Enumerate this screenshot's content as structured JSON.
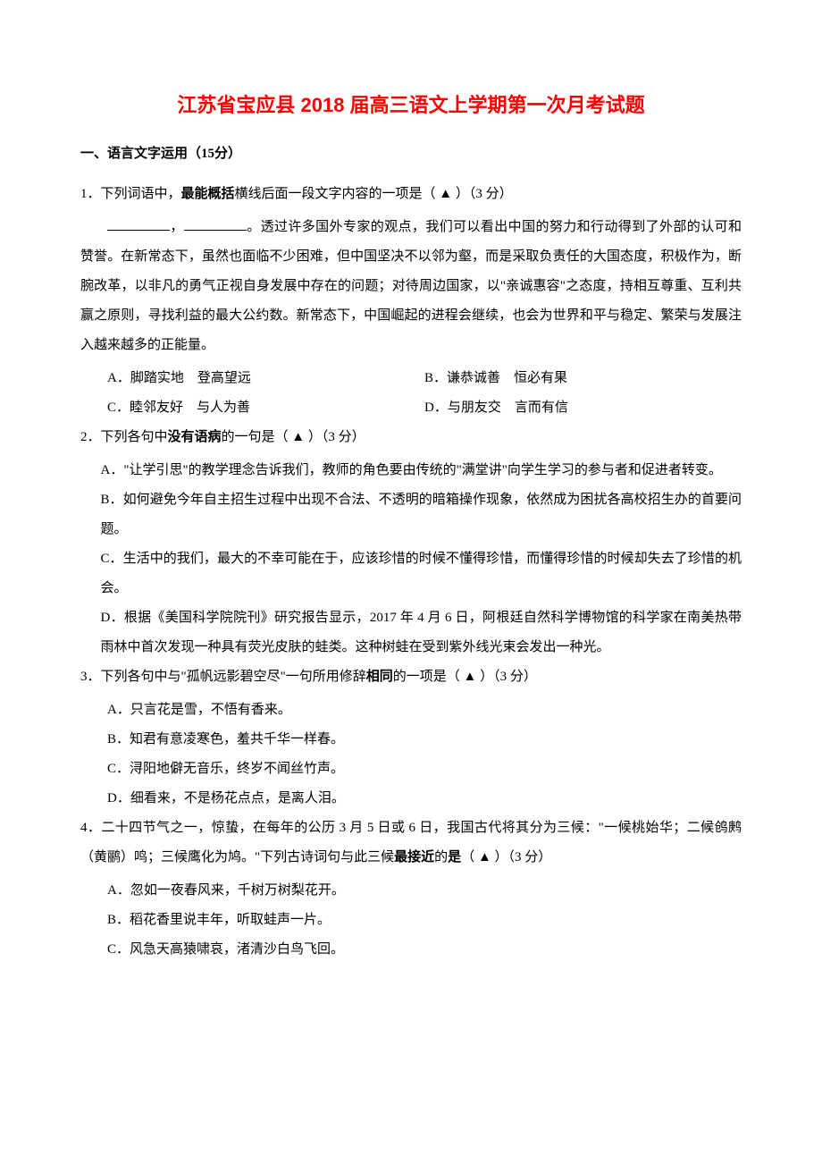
{
  "title": "江苏省宝应县 2018 届高三语文上学期第一次月考试题",
  "section1": {
    "header": "一、语言文字运用（15分）",
    "q1": {
      "label": "1．下列词语中，",
      "bold": "最能概括",
      "after": "横线后面一段文字内容的一项是（  ▲  ）（3 分）",
      "body": "。透过许多国外专家的观点，我们可以看出中国的努力和行动得到了外部的认可和赞誉。在新常态下，虽然也面临不少困难，但中国坚决不以邻为壑，而是采取负责任的大国态度，积极作为，断腕改革，以非凡的勇气正视自身发展中存在的问题；对待周边国家，以\"亲诚惠容\"之态度，持相互尊重、互利共赢之原则，寻找利益的最大公约数。新常态下，中国崛起的进程会继续，也会为世界和平与稳定、繁荣与发展注入越来越多的正能量。",
      "optA1": "A．脚踏实地",
      "optA2": "登高望远",
      "optB1": "B．谦恭诚善",
      "optB2": "恒必有果",
      "optC1": "C．睦邻友好",
      "optC2": "与人为善",
      "optD1": "D．与朋友交",
      "optD2": "言而有信"
    },
    "q2": {
      "label": "2．下列各句中",
      "bold": "没有语病",
      "after": "的一句是（  ▲  ）（3 分）",
      "optA": "A．\"让学引思\"的教学理念告诉我们，教师的角色要由传统的\"满堂讲\"向学生学习的参与者和促进者转变。",
      "optB": "B．如何避免今年自主招生过程中出现不合法、不透明的暗箱操作现象，依然成为困扰各高校招生办的首要问题。",
      "optC": "C．生活中的我们，最大的不幸可能在于，应该珍惜的时候不懂得珍惜，而懂得珍惜的时候却失去了珍惜的机会。",
      "optD": "D．根据《美国科学院院刊》研究报告显示，2017 年 4 月 6 日，阿根廷自然科学博物馆的科学家在南美热带雨林中首次发现一种具有荧光皮肤的蛙类。这种树蛙在受到紫外线光束会发出一种光。"
    },
    "q3": {
      "label": "3．下列各句中与\"孤帆远影碧空尽\"一句所用修辞",
      "bold": "相同",
      "after": "的一项是（  ▲  ）（3 分）",
      "optA": "A．只言花是雪，不悟有香来。",
      "optB": "B．知君有意凌寒色，羞共千华一样春。",
      "optC": "C．浔阳地僻无音乐，终岁不闻丝竹声。",
      "optD": "D．细看来，不是杨花点点，是离人泪。"
    },
    "q4": {
      "label": "4．二十四节气之一，惊蛰，在每年的公历 3 月 5 日或 6 日，我国古代将其分为三候：\"一候桃始华；二候鸧鹒（黄鹂）鸣；三候鹰化为鸠。\"下列古诗词句与此三候",
      "bold": "最接近",
      "after1": "的",
      "bold2": "是",
      "after2": "（  ▲  ）（3 分）",
      "optA": "A．忽如一夜春风来，千树万树梨花开。",
      "optB": "B．稻花香里说丰年，听取蛙声一片。",
      "optC": "C．风急天高猿啸哀，渚清沙白鸟飞回。"
    }
  }
}
